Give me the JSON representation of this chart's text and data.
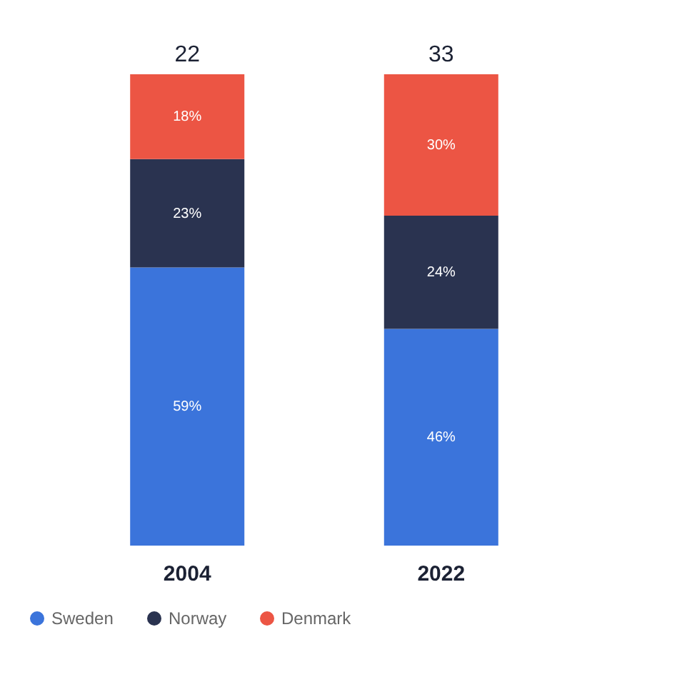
{
  "chart_data": {
    "type": "bar",
    "stacked": true,
    "categories": [
      "2004",
      "2022"
    ],
    "legend": "bottom",
    "annotations": [
      "22",
      "33"
    ],
    "series": [
      {
        "name": "Sweden",
        "color": "#3b74db",
        "values": [
          59,
          46
        ],
        "value_labels": [
          "59%",
          "46%"
        ]
      },
      {
        "name": "Norway",
        "color": "#2a3350",
        "values": [
          23,
          24
        ],
        "value_labels": [
          "23%",
          "24%"
        ]
      },
      {
        "name": "Denmark",
        "color": "#ec5544",
        "values": [
          18,
          30
        ],
        "value_labels": [
          "18%",
          "30%"
        ]
      }
    ]
  }
}
